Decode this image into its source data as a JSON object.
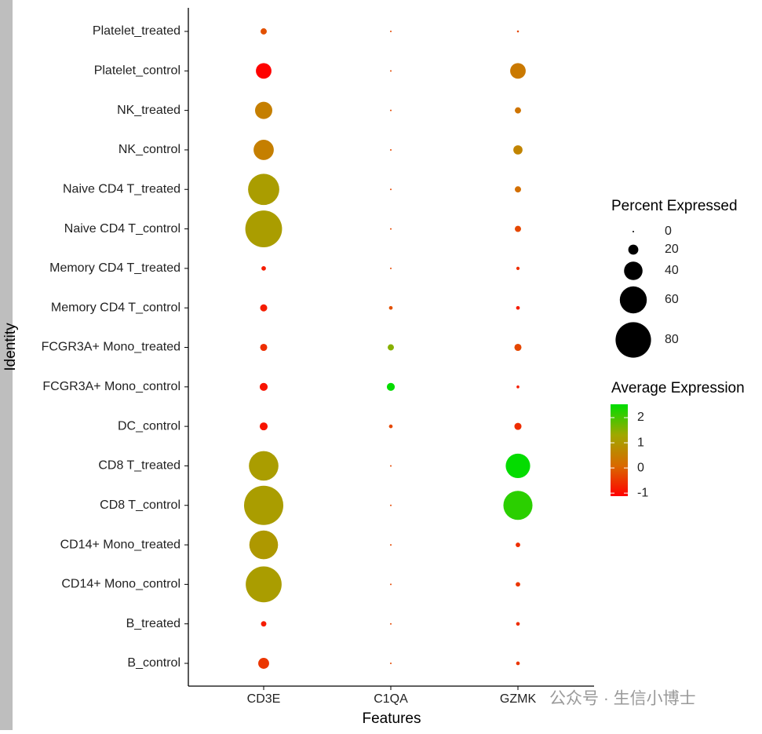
{
  "chart_data": {
    "type": "dot",
    "x_label": "Features",
    "y_label": "Identity",
    "y_categories": [
      "B_control",
      "B_treated",
      "CD14+ Mono_control",
      "CD14+ Mono_treated",
      "CD8 T_control",
      "CD8 T_treated",
      "DC_control",
      "FCGR3A+ Mono_control",
      "FCGR3A+ Mono_treated",
      "Memory CD4 T_control",
      "Memory CD4 T_treated",
      "Naive CD4 T_control",
      "Naive CD4 T_treated",
      "NK_control",
      "NK_treated",
      "Platelet_control",
      "Platelet_treated"
    ],
    "series": [
      {
        "name": "CD3E",
        "values": [
          22,
          9,
          81,
          64,
          89,
          66,
          15,
          15,
          13,
          13,
          7,
          83,
          70,
          44,
          37,
          33,
          11
        ],
        "avg_exp": [
          -0.5,
          -0.8,
          1.1,
          1.0,
          1.1,
          1.1,
          -0.9,
          -0.9,
          -0.6,
          -0.8,
          -0.8,
          1.1,
          1.1,
          0.5,
          0.5,
          -1.1,
          -0.2
        ]
      },
      {
        "name": "C1QA",
        "values": [
          0,
          0,
          0,
          0,
          0,
          0,
          5,
          15,
          11,
          5,
          0,
          0,
          0,
          0,
          0,
          0,
          0
        ],
        "avg_exp": [
          -0.3,
          -0.3,
          -0.3,
          -0.3,
          -0.3,
          -0.3,
          -0.3,
          2.5,
          1.5,
          -0.2,
          -0.3,
          -0.3,
          -0.3,
          -0.3,
          -0.3,
          -0.3,
          -0.3
        ]
      },
      {
        "name": "GZMK",
        "values": [
          5,
          5,
          7,
          7,
          65,
          54,
          13,
          3,
          13,
          5,
          4,
          11,
          11,
          18,
          11,
          33,
          1
        ],
        "avg_exp": [
          -0.5,
          -0.6,
          -0.5,
          -0.6,
          2.2,
          2.5,
          -0.6,
          -0.8,
          -0.3,
          -0.8,
          -0.6,
          -0.3,
          0.2,
          0.6,
          0.3,
          0.4,
          -0.3
        ]
      }
    ],
    "size_title": "Percent Expressed",
    "size_breaks": [
      0,
      20,
      40,
      60,
      80
    ],
    "color_title": "Average Expression",
    "color_lim": [
      -1.12,
      2.53
    ],
    "color_ticks": [
      -1,
      0,
      1,
      2
    ],
    "color_stops": [
      "#ff0000",
      "#d86a00",
      "#a0a800",
      "#00dd00"
    ],
    "watermark": "公众号 · 生信小博士"
  }
}
